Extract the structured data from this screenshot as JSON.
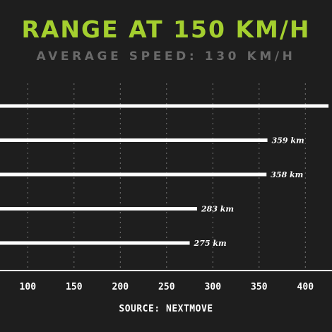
{
  "title": "RANGE AT 150 KM/H",
  "subtitle": "AVERAGE SPEED: 130 KM/H",
  "source": "SOURCE: NEXTMOVE",
  "colors": {
    "background": "#1e1e1e",
    "title": "#a4cf2f",
    "subtitle": "#6a6a6a",
    "bar": "#ffffff",
    "grid": "#777777"
  },
  "chart_data": {
    "type": "bar",
    "orientation": "horizontal",
    "title": "RANGE AT 150 KM/H",
    "subtitle": "AVERAGE SPEED: 130 KM/H",
    "values": [
      425,
      359,
      358,
      283,
      275
    ],
    "data_labels": [
      "",
      "359 km",
      "358 km",
      "283 km",
      "275 km"
    ],
    "xlim": [
      70,
      430
    ],
    "xticks": [
      100,
      150,
      200,
      250,
      300,
      350,
      400
    ],
    "xtick_labels": [
      "100",
      "150",
      "200",
      "250",
      "300",
      "350",
      "400"
    ],
    "grid": "vertical dotted"
  }
}
